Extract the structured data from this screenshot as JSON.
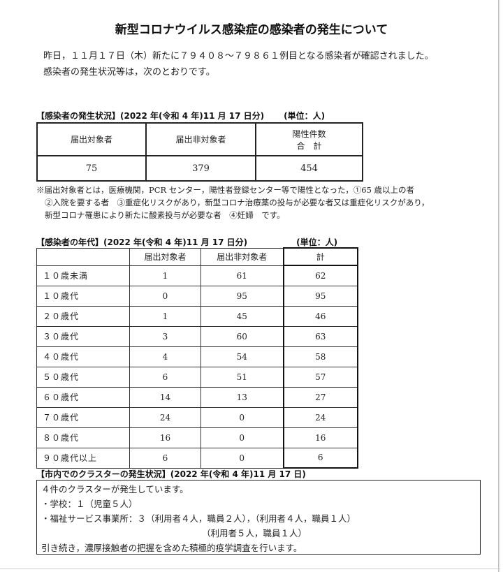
{
  "title": "新型コロナウイルス感染症の感染者の発生について",
  "intro": [
    "昨日，１１月１７日（木）新たに７９４０８～７９８６１例目となる感染者が確認されました。",
    "感染者の発生状況等は，次のとおりです。"
  ],
  "summary": {
    "heading": "【感染者の発生状況】(2022 年(令和 4 年)11 月 17 日分)",
    "unit": "(単位：人)",
    "headers": [
      "届出対象者",
      "届出非対象者",
      "陽性件数",
      "合　計"
    ],
    "values": [
      "75",
      "379",
      "454"
    ]
  },
  "notes": [
    "※届出対象者とは，医療機関，PCR センター，陽性者登録センター等で陽性となった，①65 歳以上の者",
    "②入院を要する者　③重症化リスクがあり，新型コロナ治療薬の投与が必要な者又は重症化リスクがあり，",
    "新型コロナ罹患により新たに酸素投与が必要な者　④妊婦　です。"
  ],
  "age": {
    "heading": "【感染者の年代】(2022 年(令和 4 年)11 月 17 日分)",
    "unit": "(単位：人)",
    "headers": [
      "",
      "届出対象者",
      "届出非対象者",
      "計"
    ],
    "rows": [
      [
        "１０歳未満",
        "1",
        "61",
        "62"
      ],
      [
        "１０歳代",
        "0",
        "95",
        "95"
      ],
      [
        "２０歳代",
        "1",
        "45",
        "46"
      ],
      [
        "３０歳代",
        "3",
        "60",
        "63"
      ],
      [
        "４０歳代",
        "4",
        "54",
        "58"
      ],
      [
        "５０歳代",
        "6",
        "51",
        "57"
      ],
      [
        "６０歳代",
        "14",
        "13",
        "27"
      ],
      [
        "７０歳代",
        "24",
        "0",
        "24"
      ],
      [
        "８０歳代",
        "16",
        "0",
        "16"
      ],
      [
        "９０歳代以上",
        "6",
        "0",
        "6"
      ]
    ]
  },
  "cluster": {
    "heading": "【市内でのクラスターの発生状況】(2022 年(令和 4 年)11 月 17 日)",
    "lines": [
      "４件のクラスターが発生しています。",
      "・学校：１（児童５人）",
      "・福祉サービス事業所：３（利用者４人，職員２人），（利用者４人，職員１人）",
      "（利用者５人，職員１人）",
      "引き続き，濃厚接触者の把握を含めた積極的疫学調査を行います。"
    ]
  }
}
